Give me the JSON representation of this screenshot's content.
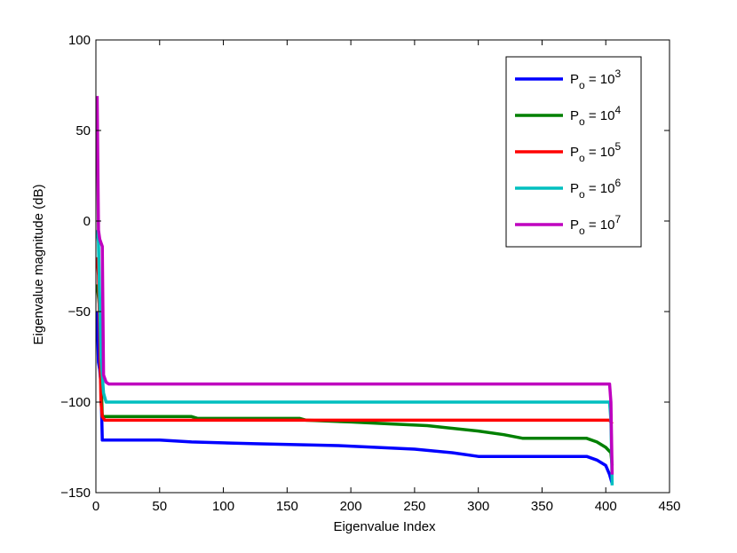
{
  "chart_data": {
    "type": "line",
    "title": "",
    "xlabel": "Eigenvalue Index",
    "ylabel": "Eigenvalue magnitude (dB)",
    "xlim": [
      0,
      450
    ],
    "ylim": [
      -150,
      100
    ],
    "xticks": [
      0,
      50,
      100,
      150,
      200,
      250,
      300,
      350,
      400,
      450
    ],
    "yticks": [
      100,
      50,
      0,
      -50,
      -100,
      -150
    ],
    "xtick_labels": [
      "0",
      "50",
      "100",
      "150",
      "200",
      "250",
      "300",
      "350",
      "400",
      "450"
    ],
    "ytick_labels": [
      "100",
      "50",
      "0",
      "−50",
      "−100",
      "−150"
    ],
    "grid": false,
    "legend_position": "top-right",
    "series": [
      {
        "legend_base": "P",
        "legend_sub": "o",
        "legend_mid": " = 10",
        "legend_exp": "3",
        "color": "#0000ff",
        "points": [
          [
            1,
            -50
          ],
          [
            2,
            -78
          ],
          [
            3,
            -82
          ],
          [
            4,
            -90
          ],
          [
            5,
            -121
          ],
          [
            8,
            -121
          ],
          [
            10,
            -121
          ],
          [
            50,
            -121
          ],
          [
            75,
            -122
          ],
          [
            125,
            -123
          ],
          [
            190,
            -124
          ],
          [
            250,
            -126
          ],
          [
            280,
            -128
          ],
          [
            300,
            -130
          ],
          [
            330,
            -130
          ],
          [
            385,
            -130
          ],
          [
            393,
            -132
          ],
          [
            400,
            -135
          ],
          [
            403,
            -140
          ],
          [
            405,
            -145
          ]
        ]
      },
      {
        "legend_base": "P",
        "legend_sub": "o",
        "legend_mid": " = 10",
        "legend_exp": "4",
        "color": "#008000",
        "points": [
          [
            1,
            -35
          ],
          [
            2,
            -42
          ],
          [
            3,
            -48
          ],
          [
            4,
            -85
          ],
          [
            5,
            -108
          ],
          [
            10,
            -108
          ],
          [
            75,
            -108
          ],
          [
            80,
            -109
          ],
          [
            160,
            -109
          ],
          [
            165,
            -110
          ],
          [
            200,
            -111
          ],
          [
            230,
            -112
          ],
          [
            260,
            -113
          ],
          [
            300,
            -116
          ],
          [
            320,
            -118
          ],
          [
            335,
            -120
          ],
          [
            385,
            -120
          ],
          [
            393,
            -122
          ],
          [
            400,
            -125
          ],
          [
            404,
            -128
          ],
          [
            405,
            -135
          ]
        ]
      },
      {
        "legend_base": "P",
        "legend_sub": "o",
        "legend_mid": " = 10",
        "legend_exp": "5",
        "color": "#ff0000",
        "points": [
          [
            1,
            -20
          ],
          [
            2,
            -30
          ],
          [
            3,
            -60
          ],
          [
            4,
            -100
          ],
          [
            5,
            -108
          ],
          [
            7,
            -110
          ],
          [
            50,
            -110
          ],
          [
            200,
            -110
          ],
          [
            350,
            -110
          ],
          [
            403,
            -110
          ],
          [
            405,
            -112
          ]
        ]
      },
      {
        "legend_base": "P",
        "legend_sub": "o",
        "legend_mid": " = 10",
        "legend_exp": "6",
        "color": "#00bfbf",
        "points": [
          [
            1,
            -5
          ],
          [
            2,
            -12
          ],
          [
            3,
            -45
          ],
          [
            4,
            -75
          ],
          [
            6,
            -95
          ],
          [
            8,
            -100
          ],
          [
            50,
            -100
          ],
          [
            200,
            -100
          ],
          [
            350,
            -100
          ],
          [
            403,
            -100
          ],
          [
            404,
            -110
          ],
          [
            405,
            -146
          ]
        ]
      },
      {
        "legend_base": "P",
        "legend_sub": "o",
        "legend_mid": " = 10",
        "legend_exp": "7",
        "color": "#bf00bf",
        "points": [
          [
            1,
            69
          ],
          [
            2,
            -5
          ],
          [
            3,
            -10
          ],
          [
            4,
            -12
          ],
          [
            5,
            -14
          ],
          [
            6,
            -85
          ],
          [
            8,
            -89
          ],
          [
            10,
            -90
          ],
          [
            100,
            -90
          ],
          [
            250,
            -90
          ],
          [
            400,
            -90
          ],
          [
            403,
            -90
          ],
          [
            404,
            -100
          ],
          [
            405,
            -140
          ]
        ]
      }
    ]
  }
}
